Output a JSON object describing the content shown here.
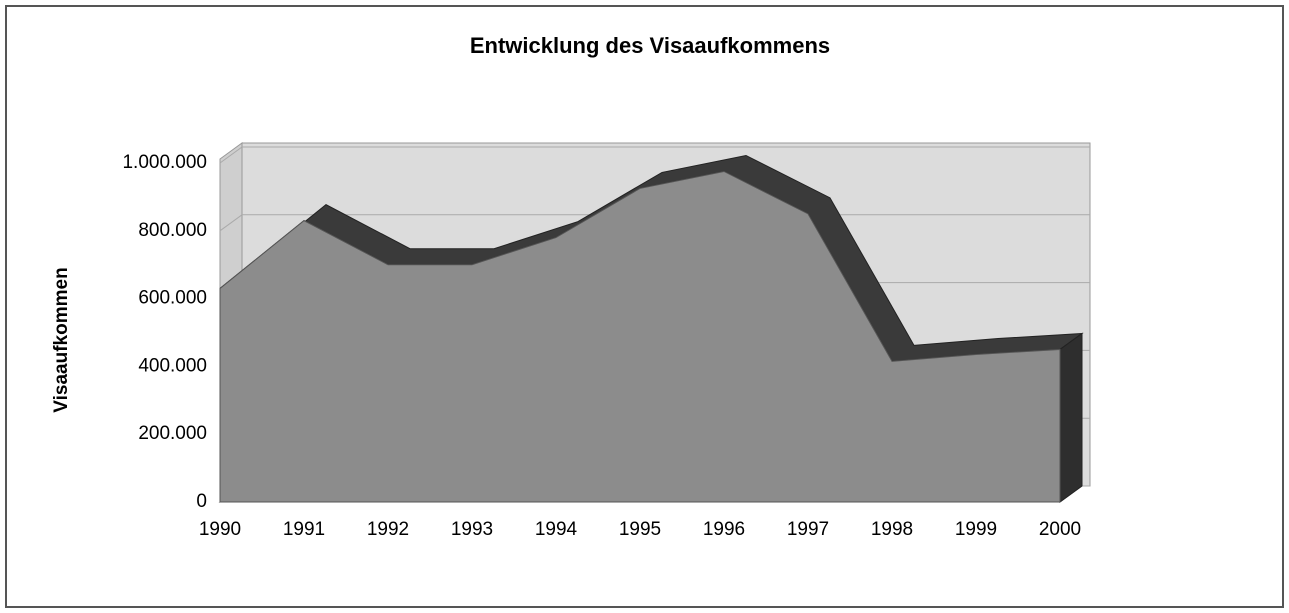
{
  "chart_data": {
    "type": "area3d",
    "title": "Entwicklung des Visaaufkommens",
    "y_label": "Visaaufkommen",
    "categories": [
      "1990",
      "1991",
      "1992",
      "1993",
      "1994",
      "1995",
      "1996",
      "1997",
      "1998",
      "1999",
      "2000"
    ],
    "values": [
      630000,
      830000,
      700000,
      700000,
      780000,
      925000,
      975000,
      850000,
      415000,
      435000,
      450000
    ],
    "color": "#8c8c8c",
    "top_color": "#3a3a3a",
    "ylim": [
      0,
      1000000
    ],
    "yticks": [
      0,
      {
        "value": 200000,
        "label": "200.000"
      },
      {
        "value": 400000,
        "label": "400.000"
      },
      {
        "value": 600000,
        "label": "600.000"
      },
      {
        "value": 800000,
        "label": "800.000"
      },
      {
        "value": 1000000,
        "label": "1.000.000"
      }
    ],
    "grid": true
  }
}
